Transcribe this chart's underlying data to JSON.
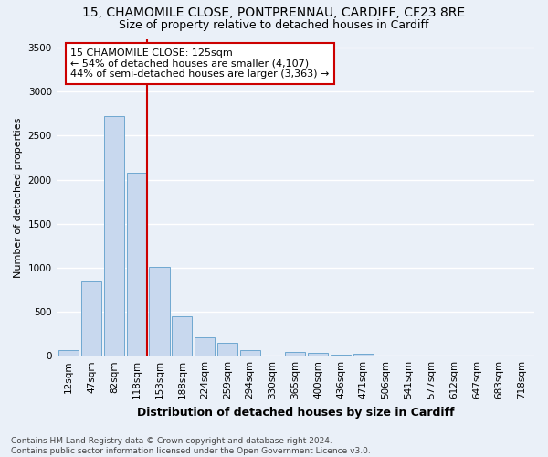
{
  "title": "15, CHAMOMILE CLOSE, PONTPRENNAU, CARDIFF, CF23 8RE",
  "subtitle": "Size of property relative to detached houses in Cardiff",
  "xlabel": "Distribution of detached houses by size in Cardiff",
  "ylabel": "Number of detached properties",
  "categories": [
    "12sqm",
    "47sqm",
    "82sqm",
    "118sqm",
    "153sqm",
    "188sqm",
    "224sqm",
    "259sqm",
    "294sqm",
    "330sqm",
    "365sqm",
    "400sqm",
    "436sqm",
    "471sqm",
    "506sqm",
    "541sqm",
    "577sqm",
    "612sqm",
    "647sqm",
    "683sqm",
    "718sqm"
  ],
  "values": [
    65,
    850,
    2720,
    2080,
    1010,
    450,
    205,
    145,
    65,
    0,
    40,
    35,
    10,
    20,
    0,
    0,
    0,
    0,
    0,
    0,
    0
  ],
  "bar_color": "#c8d8ee",
  "bar_edge_color": "#6fa8d0",
  "background_color": "#eaf0f8",
  "grid_color": "#ffffff",
  "annotation_box_text": "15 CHAMOMILE CLOSE: 125sqm\n← 54% of detached houses are smaller (4,107)\n44% of semi-detached houses are larger (3,363) →",
  "annotation_box_color": "#ffffff",
  "annotation_box_edge_color": "#cc0000",
  "vline_color": "#cc0000",
  "vline_x": 3.45,
  "ylim": [
    0,
    3600
  ],
  "yticks": [
    0,
    500,
    1000,
    1500,
    2000,
    2500,
    3000,
    3500
  ],
  "footnote": "Contains HM Land Registry data © Crown copyright and database right 2024.\nContains public sector information licensed under the Open Government Licence v3.0.",
  "title_fontsize": 10,
  "subtitle_fontsize": 9,
  "xlabel_fontsize": 9,
  "ylabel_fontsize": 8,
  "tick_fontsize": 7.5,
  "annotation_fontsize": 8,
  "footnote_fontsize": 6.5
}
